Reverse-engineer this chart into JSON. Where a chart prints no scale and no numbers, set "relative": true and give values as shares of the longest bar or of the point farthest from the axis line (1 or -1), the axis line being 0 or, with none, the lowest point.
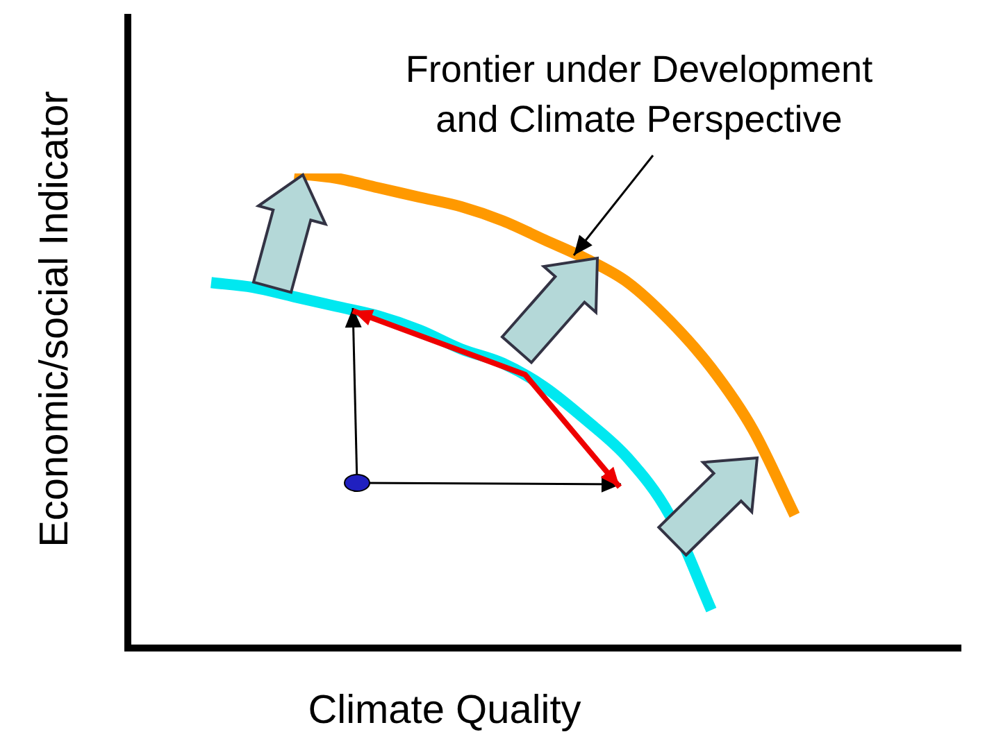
{
  "chart_data": {
    "type": "line",
    "relative": true,
    "marker": "none",
    "xlabel": "Climate Quality",
    "ylabel": "Economic/social Indicator",
    "annotations": [
      "Frontier under Development\nand Climate Perspective"
    ],
    "categories": [
      null,
      null,
      null,
      null,
      null,
      null,
      null,
      null,
      null,
      null,
      null,
      null,
      null,
      null,
      null,
      null,
      null,
      null,
      null,
      null,
      null
    ],
    "series": [
      {
        "color": "#00e8f0",
        "values": [
          null,
          null,
          0.77,
          0.76,
          0.74,
          0.72,
          0.7,
          0.67,
          0.63,
          0.6,
          0.55,
          0.48,
          0.4,
          0.28,
          0.08,
          null,
          null,
          null,
          null,
          null,
          null
        ]
      },
      {
        "color": "#ff9900",
        "values": [
          null,
          null,
          null,
          null,
          1,
          0.99,
          0.97,
          0.95,
          0.93,
          0.9,
          0.86,
          0.82,
          0.77,
          0.69,
          0.59,
          0.46,
          0.28,
          null,
          null,
          null,
          null
        ]
      }
    ]
  }
}
